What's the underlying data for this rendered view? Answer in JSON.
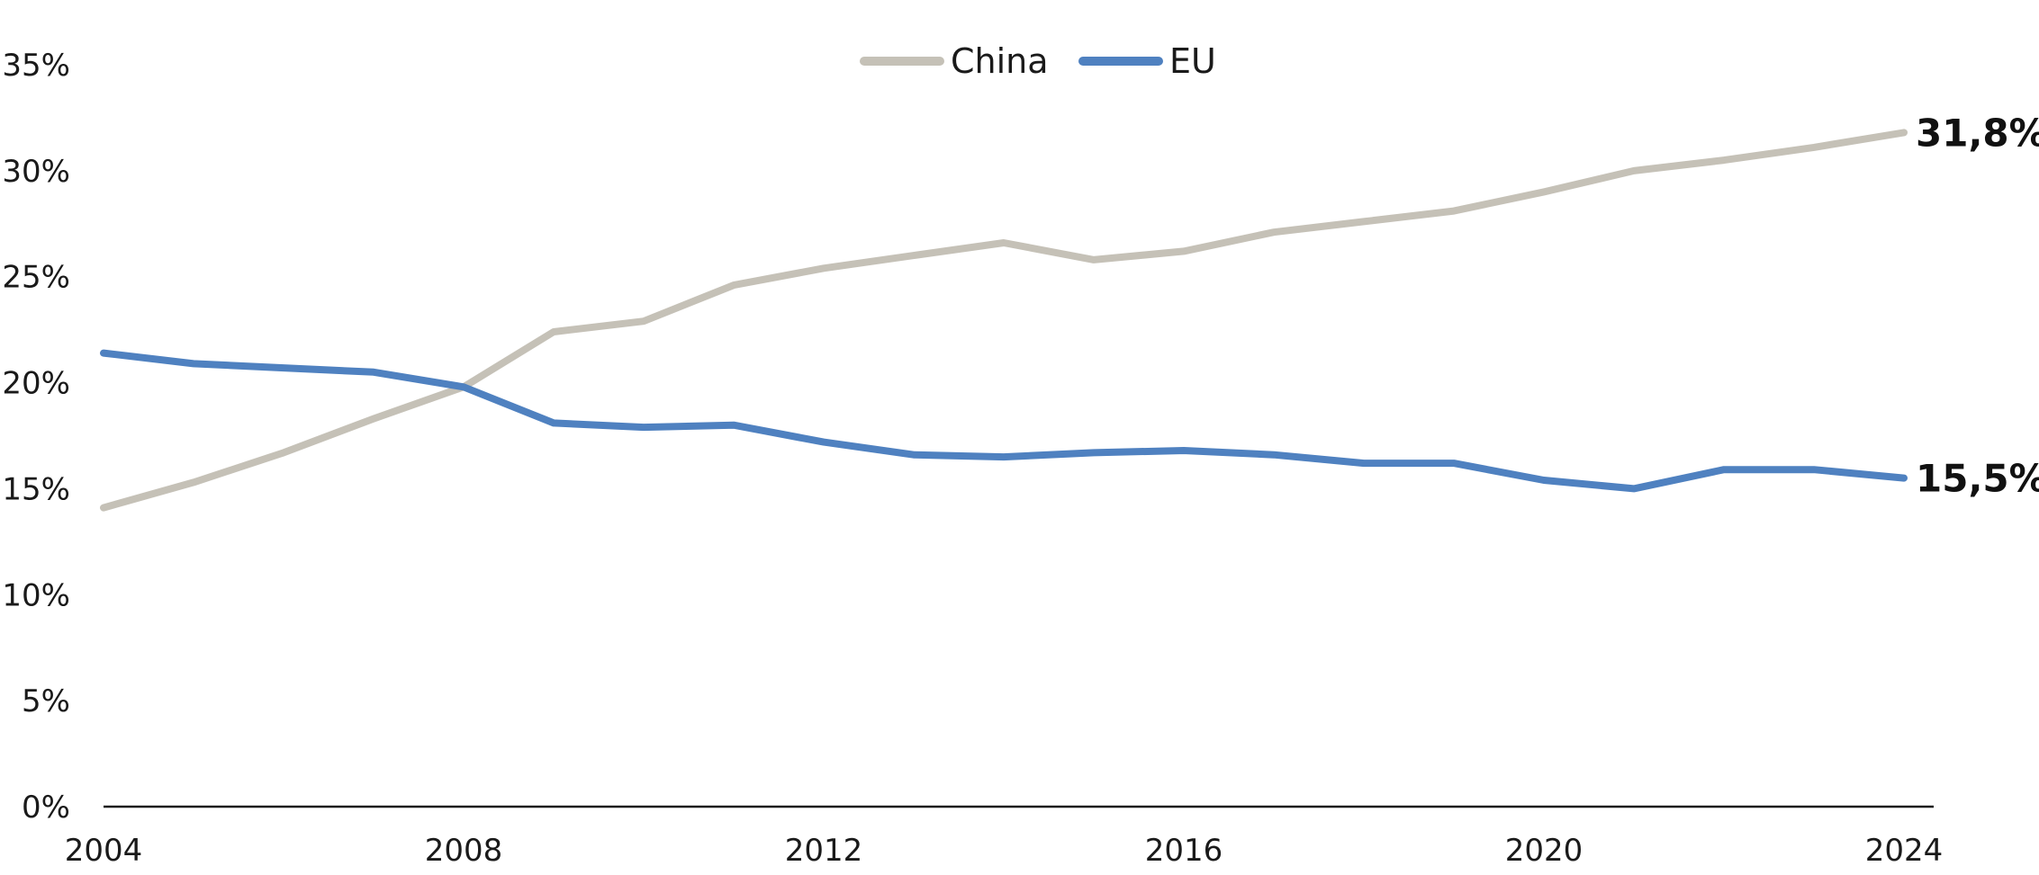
{
  "chart_data": {
    "type": "line",
    "x": [
      2004,
      2005,
      2006,
      2007,
      2008,
      2009,
      2010,
      2011,
      2012,
      2013,
      2014,
      2015,
      2016,
      2017,
      2018,
      2019,
      2020,
      2021,
      2022,
      2023,
      2024
    ],
    "series": [
      {
        "name": "China",
        "color": "#c5c1b7",
        "values": [
          14.1,
          15.3,
          16.7,
          18.3,
          19.8,
          22.4,
          22.9,
          24.6,
          25.4,
          26.0,
          26.6,
          25.8,
          26.2,
          27.1,
          27.6,
          28.1,
          29.0,
          30.0,
          30.5,
          31.1,
          31.8
        ]
      },
      {
        "name": "EU",
        "color": "#4f81c0",
        "values": [
          21.4,
          20.9,
          20.7,
          20.5,
          19.8,
          18.1,
          17.9,
          18.0,
          17.2,
          16.6,
          16.5,
          16.7,
          16.8,
          16.6,
          16.2,
          16.2,
          15.4,
          15.0,
          15.9,
          15.9,
          15.5
        ]
      }
    ],
    "ylim": [
      0,
      35
    ],
    "xlim": [
      2004,
      2024
    ],
    "yticks": [
      "0%",
      "5%",
      "10%",
      "15%",
      "20%",
      "25%",
      "30%",
      "35%"
    ],
    "xticks": [
      "2004",
      "2008",
      "2012",
      "2016",
      "2020",
      "2024"
    ],
    "end_labels": [
      "31,8%",
      "15,5%"
    ],
    "legend_position": "top-center",
    "grid": false
  }
}
